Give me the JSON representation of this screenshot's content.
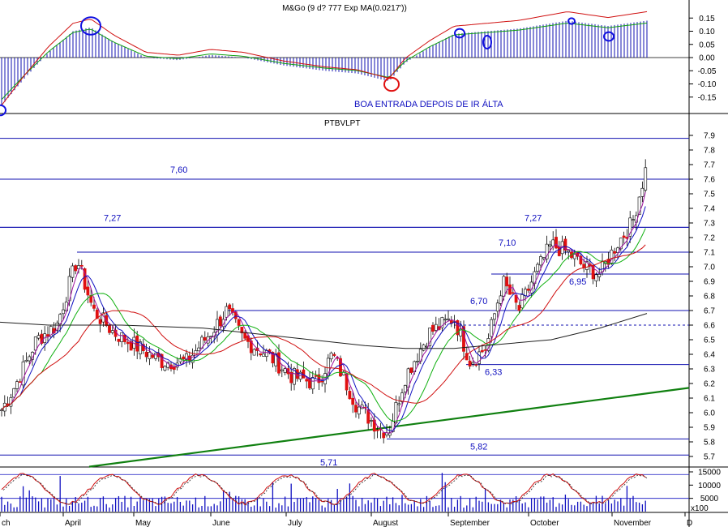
{
  "chart_data": [
    {
      "type": "bar",
      "panel": "macd",
      "title": "M&Go (9 d? 777 Exp MA(0.0217'))",
      "annotation": "BOA ENTRADA DEPOIS DE IR ÁLTA",
      "ylim": [
        -0.2,
        0.2
      ],
      "y_ticks": [
        "0.15",
        "0.10",
        "0.05",
        "0.00",
        "-0.05",
        "-0.10",
        "-0.15"
      ],
      "y_tick_values": [
        0.15,
        0.1,
        0.05,
        0.0,
        -0.05,
        -0.1,
        -0.15
      ],
      "colors": {
        "histogram": "#1010b0",
        "signal_red": "#d01010",
        "signal_green": "#10a010",
        "circle_blue": "#1010e0",
        "circle_red": "#e01010"
      }
    },
    {
      "type": "candlestick",
      "panel": "price",
      "title": "PTBVLPT",
      "ylim": [
        5.65,
        7.95
      ],
      "y_ticks": [
        "7.9",
        "7.8",
        "7.7",
        "7.6",
        "7.5",
        "7.4",
        "7.3",
        "7.2",
        "7.1",
        "7.0",
        "6.9",
        "6.8",
        "6.7",
        "6.6",
        "6.5",
        "6.4",
        "6.3",
        "6.2",
        "6.1",
        "6.0",
        "5.9",
        "5.8",
        "5.7"
      ],
      "y_tick_values": [
        7.9,
        7.8,
        7.7,
        7.6,
        7.5,
        7.4,
        7.3,
        7.2,
        7.1,
        7.0,
        6.9,
        6.8,
        6.7,
        6.6,
        6.5,
        6.4,
        6.3,
        6.2,
        6.1,
        6.0,
        5.9,
        5.8,
        5.7
      ],
      "x_ticks": [
        "ch",
        "April",
        "May",
        "June",
        "July",
        "August",
        "September",
        "October",
        "November",
        "D"
      ],
      "levels": [
        {
          "value": 7.88,
          "label": ""
        },
        {
          "value": 7.6,
          "label": "7,60"
        },
        {
          "value": 7.27,
          "label": "7,27"
        },
        {
          "value": 7.27,
          "label": "7,27"
        },
        {
          "value": 7.1,
          "label": "7,10"
        },
        {
          "value": 6.95,
          "label": "6,95"
        },
        {
          "value": 6.7,
          "label": "6,70"
        },
        {
          "value": 6.33,
          "label": "6,33"
        },
        {
          "value": 5.82,
          "label": "5,82"
        },
        {
          "value": 5.71,
          "label": "5,71"
        }
      ],
      "dashed_level": 6.6,
      "trendline": {
        "from": 5.63,
        "to": 6.17
      },
      "colors": {
        "up": "#ffffff",
        "down": "#e01010",
        "level": "#1010b0",
        "trend": "#108010",
        "ma_fast": "#1010c0",
        "ma_mid": "#10b010",
        "ma_slow": "#d01010",
        "ma_long": "#202020",
        "ma_purple": "#a010a0"
      }
    },
    {
      "type": "bar",
      "panel": "volume",
      "y_ticks": [
        "15000",
        "10000",
        "5000"
      ],
      "y_tick_values": [
        15000,
        10000,
        5000
      ],
      "unit_label": "x100",
      "colors": {
        "volume": "#1010c0",
        "stoch_red": "#d01010",
        "stoch_dash": "#202020"
      }
    }
  ]
}
